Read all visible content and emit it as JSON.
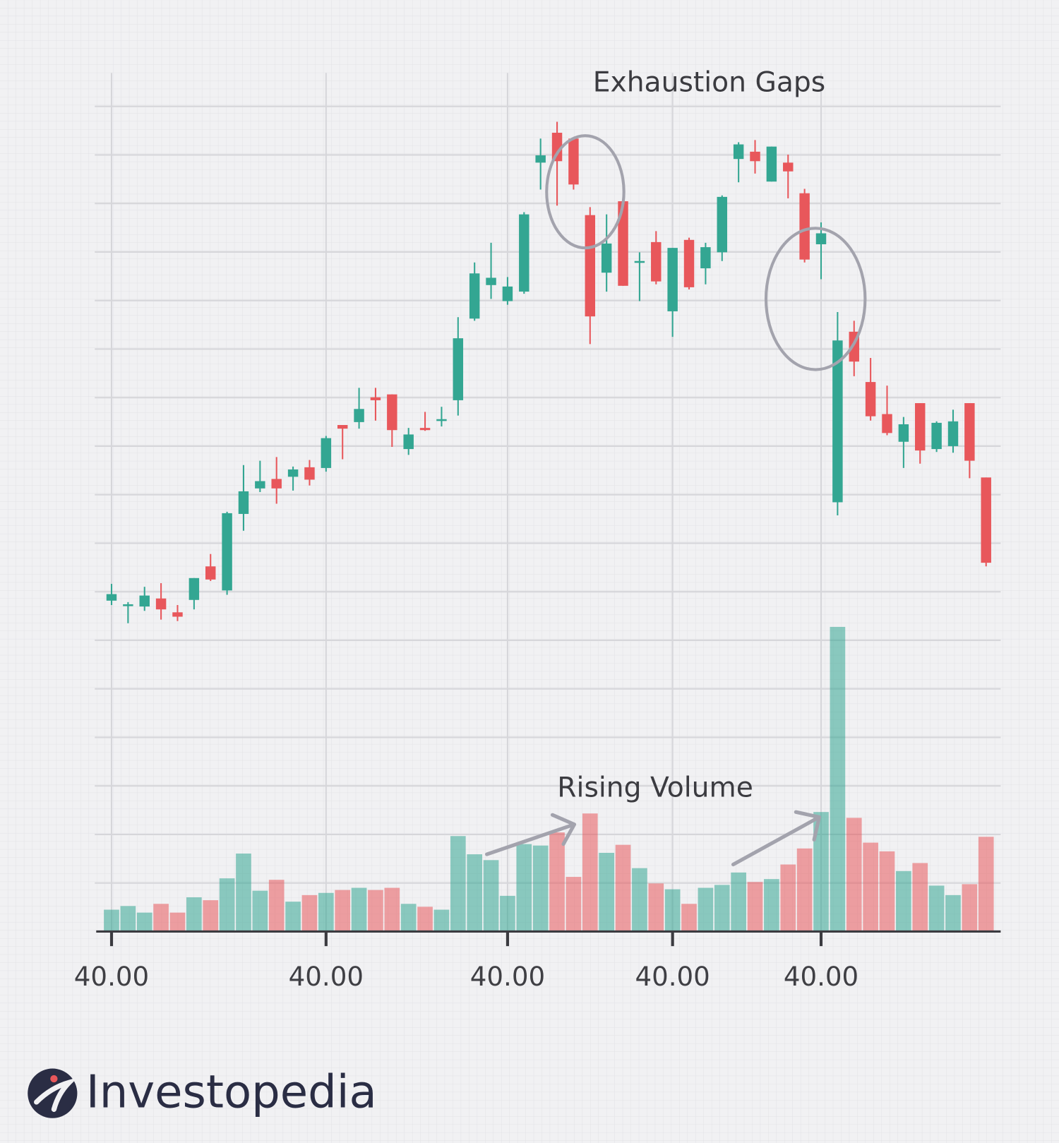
{
  "chart_data": {
    "type": "candlestick",
    "annotations": [
      "Exhaustion Gaps",
      "Rising Volume"
    ],
    "x": [
      0,
      1,
      2,
      3,
      4,
      5,
      6,
      7,
      8,
      9,
      10,
      11,
      12,
      13,
      14,
      15,
      16,
      17,
      18,
      19,
      20,
      21,
      22,
      23,
      24,
      25,
      26,
      27,
      28,
      29,
      30,
      31,
      32,
      33,
      34,
      35,
      36,
      37,
      38,
      39,
      40,
      41,
      42,
      43,
      44,
      45,
      46,
      47,
      48,
      49,
      50,
      51,
      52,
      53
    ],
    "open": [
      454,
      448,
      446,
      457,
      438,
      455,
      501,
      468,
      573,
      608,
      621,
      624,
      637,
      636,
      695,
      699,
      733,
      737,
      662,
      691,
      701,
      729,
      841,
      887,
      865,
      878,
      1055,
      1096,
      1088,
      983,
      904,
      1002,
      918,
      946,
      851,
      949,
      910,
      932,
      1060,
      1070,
      1029,
      1055,
      1013,
      943,
      589,
      823,
      754,
      710,
      672,
      725,
      662,
      666,
      725,
      623
    ],
    "high": [
      477,
      452,
      473,
      478,
      448,
      485,
      518,
      576,
      640,
      646,
      651,
      638,
      647,
      680,
      695,
      746,
      746,
      737,
      691,
      713,
      720,
      843,
      918,
      945,
      898,
      987,
      1088,
      1111,
      1088,
      994,
      984,
      1002,
      932,
      961,
      938,
      952,
      945,
      1010,
      1083,
      1086,
      1077,
      1066,
      1019,
      973,
      850,
      838,
      787,
      749,
      706,
      725,
      700,
      716,
      725,
      623
    ],
    "low": [
      448,
      423,
      440,
      428,
      426,
      442,
      481,
      462,
      550,
      603,
      587,
      605,
      612,
      631,
      648,
      690,
      701,
      665,
      654,
      687,
      693,
      708,
      838,
      868,
      860,
      875,
      1018,
      996,
      1018,
      806,
      878,
      886,
      865,
      888,
      816,
      881,
      888,
      920,
      1028,
      1040,
      1029,
      1006,
      918,
      895,
      571,
      762,
      701,
      681,
      636,
      642,
      658,
      657,
      622,
      501
    ],
    "close": [
      463,
      449,
      461,
      442,
      432,
      485,
      483,
      574,
      604,
      618,
      608,
      634,
      620,
      677,
      690,
      717,
      729,
      688,
      682,
      688,
      703,
      814,
      903,
      897,
      885,
      984,
      1065,
      1057,
      1025,
      844,
      944,
      886,
      920,
      892,
      938,
      884,
      939,
      1008,
      1080,
      1057,
      1077,
      1043,
      922,
      958,
      811,
      782,
      707,
      684,
      696,
      660,
      698,
      700,
      646,
      506
    ],
    "volume": [
      30,
      35,
      26,
      38,
      26,
      47,
      43,
      73,
      107,
      56,
      71,
      41,
      50,
      53,
      57,
      60,
      57,
      60,
      38,
      34,
      30,
      131,
      106,
      98,
      49,
      120,
      118,
      136,
      75,
      162,
      108,
      119,
      87,
      66,
      58,
      38,
      60,
      64,
      81,
      68,
      72,
      92,
      114,
      164,
      418,
      156,
      122,
      110,
      83,
      94,
      63,
      50,
      65,
      130
    ],
    "up_color": "#33a692",
    "down_color": "#e8575b",
    "xlim": [
      -1,
      54
    ],
    "ylim": [
      0,
      1178
    ],
    "xticks": [
      {
        "value": 0,
        "label": "40.00"
      },
      {
        "value": 13,
        "label": "40.00"
      },
      {
        "value": 24,
        "label": "40.00"
      },
      {
        "value": 34,
        "label": "40.00"
      },
      {
        "value": 43,
        "label": "40.00"
      }
    ],
    "grid": true
  },
  "logo": "Investopedia"
}
